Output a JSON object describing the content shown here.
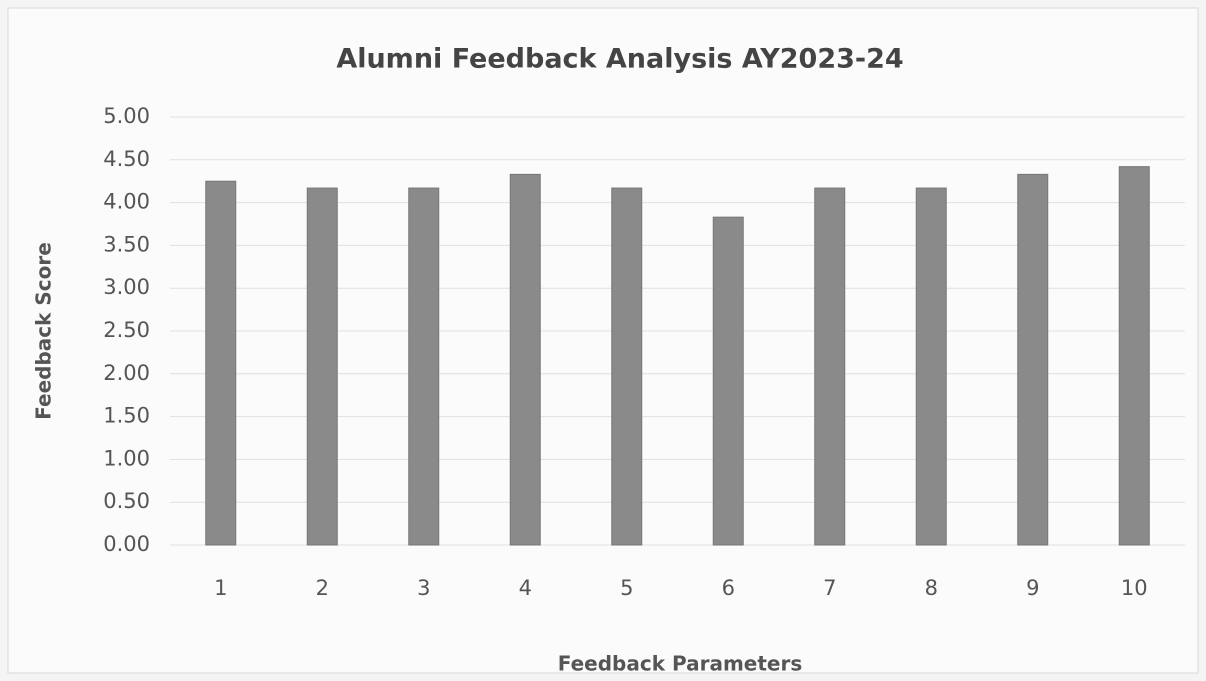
{
  "chart_data": {
    "type": "bar",
    "title": "Alumni Feedback Analysis AY2023-24",
    "x_label": "Feedback Parameters",
    "y_label": "Feedback Score",
    "categories": [
      "1",
      "2",
      "3",
      "4",
      "5",
      "6",
      "7",
      "8",
      "9",
      "10"
    ],
    "values": [
      4.25,
      4.17,
      4.17,
      4.33,
      4.17,
      3.83,
      4.17,
      4.17,
      4.33,
      4.42
    ],
    "color": "#8a8a8a",
    "ylim": [
      0,
      5
    ],
    "yticks": [
      {
        "value": 0,
        "label": "0.00"
      },
      {
        "value": 0.5,
        "label": "0.50"
      },
      {
        "value": 1,
        "label": "1.00"
      },
      {
        "value": 1.5,
        "label": "1.50"
      },
      {
        "value": 2,
        "label": "2.00"
      },
      {
        "value": 2.5,
        "label": "2.50"
      },
      {
        "value": 3,
        "label": "3.00"
      },
      {
        "value": 3.5,
        "label": "3.50"
      },
      {
        "value": 4,
        "label": "4.00"
      },
      {
        "value": 4.5,
        "label": "4.50"
      },
      {
        "value": 5,
        "label": "5.00"
      }
    ],
    "grid": true
  }
}
